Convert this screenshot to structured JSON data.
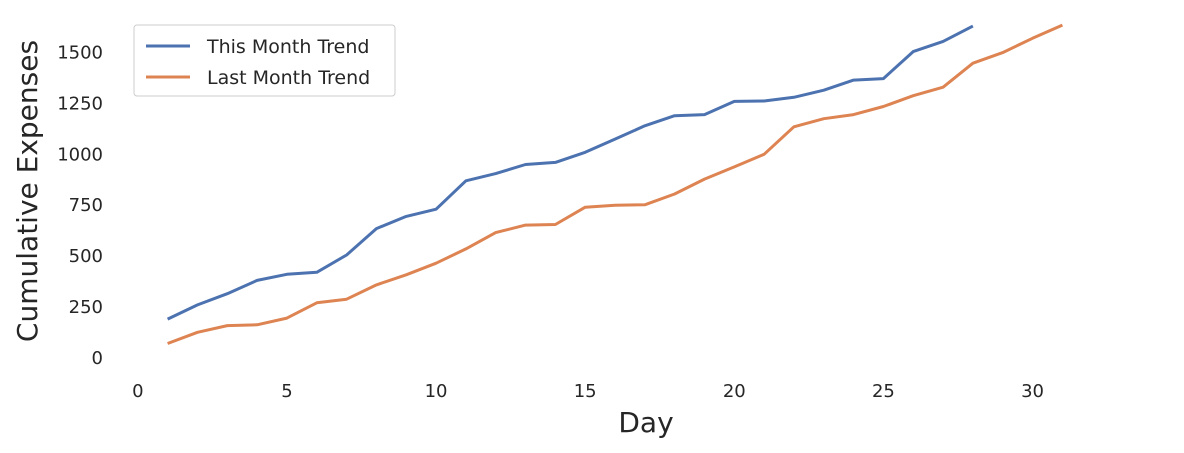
{
  "chart_data": {
    "type": "line",
    "title": "",
    "xlabel": "Day",
    "ylabel": "Cumulative Expenses",
    "xlim": [
      -1,
      33
    ],
    "ylim": [
      -70,
      1670
    ],
    "xticks": [
      0,
      5,
      10,
      15,
      20,
      25,
      30
    ],
    "xtick_labels": [
      "0",
      "5",
      "10",
      "15",
      "20",
      "25",
      "30"
    ],
    "yticks": [
      0,
      250,
      500,
      750,
      1000,
      1250,
      1500
    ],
    "ytick_labels": [
      "0",
      "250",
      "500",
      "750",
      "1000",
      "1250",
      "1500"
    ],
    "grid": false,
    "legend_position": "upper-left",
    "series": [
      {
        "name": "This Month Trend",
        "color": "#4c72b0",
        "x": [
          1,
          2,
          3,
          4,
          5,
          6,
          7,
          8,
          9,
          10,
          11,
          12,
          13,
          14,
          15,
          16,
          17,
          18,
          19,
          20,
          21,
          22,
          23,
          24,
          25,
          26,
          27,
          28
        ],
        "values": [
          190,
          260,
          315,
          380,
          410,
          420,
          505,
          635,
          695,
          730,
          870,
          905,
          950,
          960,
          1010,
          1075,
          1140,
          1190,
          1195,
          1260,
          1262,
          1280,
          1315,
          1365,
          1372,
          1505,
          1555,
          1630
        ]
      },
      {
        "name": "Last Month Trend",
        "color": "#dd8452",
        "x": [
          1,
          2,
          3,
          4,
          5,
          6,
          7,
          8,
          9,
          10,
          11,
          12,
          13,
          14,
          15,
          16,
          17,
          18,
          19,
          20,
          21,
          22,
          23,
          24,
          25,
          26,
          27,
          28,
          29,
          30,
          31
        ],
        "values": [
          70,
          125,
          158,
          162,
          195,
          270,
          288,
          358,
          408,
          465,
          535,
          615,
          652,
          655,
          740,
          750,
          752,
          805,
          878,
          938,
          1000,
          1135,
          1175,
          1195,
          1235,
          1288,
          1330,
          1448,
          1500,
          1570,
          1635
        ]
      }
    ]
  }
}
